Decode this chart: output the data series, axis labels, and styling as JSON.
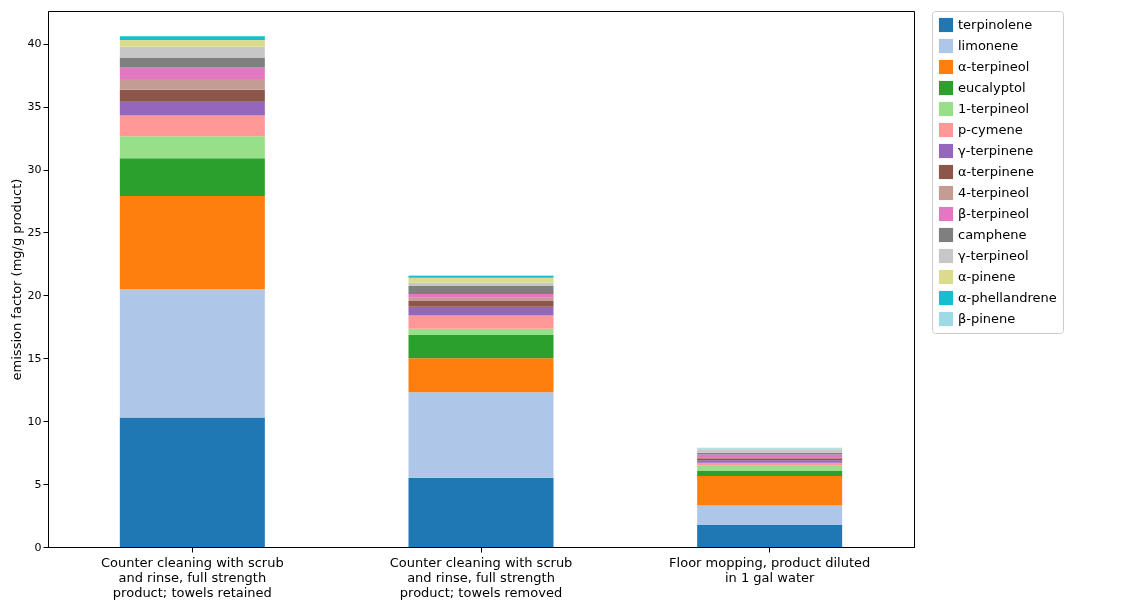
{
  "chart_data": {
    "type": "bar",
    "stacked": true,
    "ylabel": "emission factor (mg/g product)",
    "categories": [
      "Counter cleaning with scrub and rinse, full strength product; towels retained",
      "Counter cleaning with scrub and rinse, full strength product; towels removed",
      "Floor mopping, product diluted in 1 gal water"
    ],
    "ylim": [
      0,
      42.6
    ],
    "yticks": [
      0,
      5,
      10,
      15,
      20,
      25,
      30,
      35,
      40
    ],
    "grid": false,
    "legend": "right",
    "series": [
      {
        "name": "terpinolene",
        "color": "#1f77b4",
        "values": [
          10.3,
          5.5,
          1.75
        ]
      },
      {
        "name": "limonene",
        "color": "#aec7e8",
        "values": [
          10.2,
          6.8,
          1.55
        ]
      },
      {
        "name": "α-terpineol",
        "color": "#ff7f0e",
        "values": [
          7.4,
          2.7,
          2.35
        ]
      },
      {
        "name": "eucalyptol",
        "color": "#2ca02c",
        "values": [
          3.0,
          1.85,
          0.4
        ]
      },
      {
        "name": "1-terpineol",
        "color": "#98df8a",
        "values": [
          1.75,
          0.5,
          0.4
        ]
      },
      {
        "name": "p-cymene",
        "color": "#ff9896",
        "values": [
          1.65,
          1.05,
          0.25
        ]
      },
      {
        "name": "γ-terpinene",
        "color": "#9467bd",
        "values": [
          1.15,
          0.7,
          0.2
        ]
      },
      {
        "name": "α-terpinene",
        "color": "#8c564b",
        "values": [
          0.9,
          0.45,
          0.15
        ]
      },
      {
        "name": "4-terpineol",
        "color": "#c49c94",
        "values": [
          0.85,
          0.25,
          0.1
        ]
      },
      {
        "name": "β-terpineol",
        "color": "#e377c2",
        "values": [
          0.9,
          0.3,
          0.2
        ]
      },
      {
        "name": "camphene",
        "color": "#7f7f7f",
        "values": [
          0.8,
          0.65,
          0.15
        ]
      },
      {
        "name": "γ-terpineol",
        "color": "#c7c7c7",
        "values": [
          0.85,
          0.25,
          0.2
        ]
      },
      {
        "name": "α-pinene",
        "color": "#dbdb8d",
        "values": [
          0.55,
          0.4,
          0.1
        ]
      },
      {
        "name": "α-phellandrene",
        "color": "#17becf",
        "values": [
          0.3,
          0.15,
          null
        ]
      },
      {
        "name": "β-pinene",
        "color": "#9edae5",
        "values": [
          null,
          0.05,
          0.08
        ]
      }
    ]
  }
}
